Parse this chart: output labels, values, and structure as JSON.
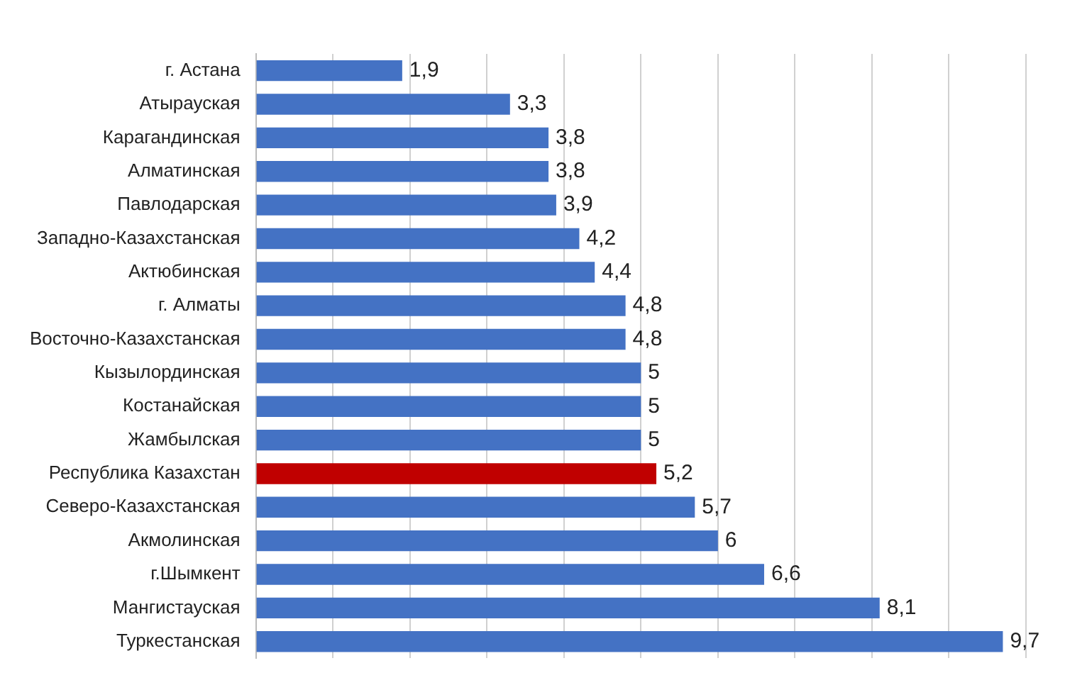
{
  "chart_data": {
    "type": "bar",
    "orientation": "horizontal",
    "categories": [
      "г. Астана",
      "Атырауская",
      "Карагандинская",
      "Алматинская",
      "Павлодарская",
      "Западно-Казахстанская",
      "Актюбинская",
      "г. Алматы",
      "Восточно-Казахстанская",
      "Кызылординская",
      "Костанайская",
      "Жамбылская",
      "Республика Казахстан",
      "Северо-Казахстанская",
      "Акмолинская",
      "г.Шымкент",
      "Мангистауская",
      "Туркестанская"
    ],
    "values": [
      1.9,
      3.3,
      3.8,
      3.8,
      3.9,
      4.2,
      4.4,
      4.8,
      4.8,
      5,
      5,
      5,
      5.2,
      5.7,
      6,
      6.6,
      8.1,
      9.7
    ],
    "value_labels": [
      "1,9",
      "3,3",
      "3,8",
      "3,8",
      "3,9",
      "4,2",
      "4,4",
      "4,8",
      "4,8",
      "5",
      "5",
      "5",
      "5,2",
      "5,7",
      "6",
      "6,6",
      "8,1",
      "9,7"
    ],
    "colors": [
      "#4472c4",
      "#4472c4",
      "#4472c4",
      "#4472c4",
      "#4472c4",
      "#4472c4",
      "#4472c4",
      "#4472c4",
      "#4472c4",
      "#4472c4",
      "#4472c4",
      "#4472c4",
      "#c00000",
      "#4472c4",
      "#4472c4",
      "#4472c4",
      "#4472c4",
      "#4472c4"
    ],
    "xlim": [
      0,
      10
    ],
    "xticks": [
      {
        "value": 0,
        "label": null
      },
      {
        "value": 1,
        "label": null
      },
      {
        "value": 2,
        "label": null
      },
      {
        "value": 3,
        "label": null
      },
      {
        "value": 4,
        "label": null
      },
      {
        "value": 5,
        "label": null
      },
      {
        "value": 6,
        "label": null
      },
      {
        "value": 7,
        "label": null
      },
      {
        "value": 8,
        "label": null
      },
      {
        "value": 9,
        "label": null
      },
      {
        "value": 10,
        "label": null
      }
    ],
    "tick_labels": "y",
    "grid": "x",
    "legend": false
  }
}
